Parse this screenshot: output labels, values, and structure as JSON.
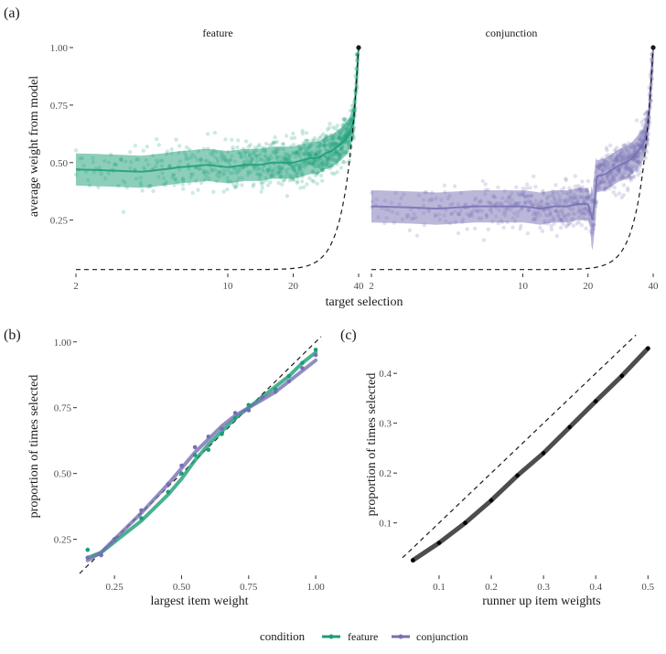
{
  "panel_labels": {
    "a": "(a)",
    "b": "(b)",
    "c": "(c)"
  },
  "colors": {
    "feature": "#1b9e77",
    "conjunction": "#7570b3",
    "line_c": "#4d4d4d",
    "ink": "#1a1a1a"
  },
  "legend": {
    "title": "condition",
    "items": [
      "feature",
      "conjunction"
    ]
  },
  "chart_data": [
    {
      "id": "a",
      "type": "scatter",
      "title": "",
      "facets": [
        "feature",
        "conjunction"
      ],
      "xlabel": "target selection",
      "ylabel": "average weight from model",
      "x_scale": "log",
      "xlim": [
        2,
        40
      ],
      "ylim": [
        0.03,
        1.0
      ],
      "xticks": [
        2,
        10,
        20,
        40
      ],
      "yticks": [
        "0.25",
        "0.50",
        "0.75",
        "1.00"
      ],
      "yticks_values": [
        0.25,
        0.5,
        0.75,
        1.0
      ],
      "reference": {
        "style": "dashed",
        "description": "curve from (2, 0.035) rising to (40, 1.00)"
      },
      "series": [
        {
          "name": "feature",
          "mean_x": [
            2,
            4,
            6,
            8,
            10,
            12,
            14,
            16,
            18,
            20,
            22,
            24,
            26,
            28,
            30,
            32,
            34,
            36,
            38,
            40
          ],
          "mean_y": [
            0.47,
            0.46,
            0.48,
            0.49,
            0.48,
            0.49,
            0.49,
            0.5,
            0.5,
            0.5,
            0.51,
            0.52,
            0.52,
            0.54,
            0.55,
            0.57,
            0.59,
            0.62,
            0.68,
            1.0
          ],
          "band_halfwidth": 0.07
        },
        {
          "name": "conjunction",
          "mean_x": [
            2,
            4,
            6,
            8,
            10,
            12,
            14,
            16,
            18,
            20,
            21,
            22,
            24,
            26,
            28,
            30,
            32,
            34,
            36,
            38,
            40
          ],
          "mean_y": [
            0.31,
            0.3,
            0.31,
            0.31,
            0.31,
            0.3,
            0.31,
            0.31,
            0.32,
            0.32,
            0.25,
            0.44,
            0.45,
            0.47,
            0.49,
            0.5,
            0.52,
            0.55,
            0.58,
            0.66,
            1.0
          ],
          "band_halfwidth": 0.07
        }
      ]
    },
    {
      "id": "b",
      "type": "line",
      "title": "",
      "xlabel": "largest item weight",
      "ylabel": "proportion of times selected",
      "xlim": [
        0.12,
        1.02
      ],
      "ylim": [
        0.12,
        1.02
      ],
      "xticks": [
        "0.25",
        "0.50",
        "0.75",
        "1.00"
      ],
      "xticks_values": [
        0.25,
        0.5,
        0.75,
        1.0
      ],
      "yticks": [
        "0.25",
        "0.50",
        "0.75",
        "1.00"
      ],
      "yticks_values": [
        0.25,
        0.5,
        0.75,
        1.0
      ],
      "reference": "y = x (dashed)",
      "x": [
        0.15,
        0.2,
        0.25,
        0.35,
        0.45,
        0.5,
        0.55,
        0.6,
        0.65,
        0.7,
        0.75,
        0.8,
        0.85,
        0.9,
        0.95,
        1.0
      ],
      "series": [
        {
          "name": "feature",
          "values": [
            0.21,
            0.19,
            0.25,
            0.33,
            0.43,
            0.5,
            0.57,
            0.59,
            0.65,
            0.71,
            0.76,
            0.79,
            0.82,
            0.87,
            0.92,
            0.97
          ]
        },
        {
          "name": "conjunction",
          "values": [
            0.18,
            0.19,
            0.25,
            0.36,
            0.46,
            0.53,
            0.6,
            0.64,
            0.67,
            0.73,
            0.74,
            0.79,
            0.81,
            0.85,
            0.9,
            0.95
          ]
        }
      ],
      "smooth": [
        {
          "name": "feature",
          "values": [
            0.18,
            0.2,
            0.24,
            0.32,
            0.42,
            0.48,
            0.55,
            0.61,
            0.66,
            0.71,
            0.75,
            0.79,
            0.83,
            0.87,
            0.92,
            0.96
          ]
        },
        {
          "name": "conjunction",
          "values": [
            0.17,
            0.2,
            0.25,
            0.35,
            0.46,
            0.52,
            0.58,
            0.63,
            0.68,
            0.72,
            0.75,
            0.78,
            0.81,
            0.85,
            0.89,
            0.93
          ]
        }
      ]
    },
    {
      "id": "c",
      "type": "line",
      "title": "",
      "xlabel": "runner up item weights",
      "ylabel": "proportion of times selected",
      "xlim": [
        0.03,
        0.51
      ],
      "ylim": [
        0.015,
        0.47
      ],
      "xticks": [
        "0.1",
        "0.2",
        "0.3",
        "0.4",
        "0.5"
      ],
      "xticks_values": [
        0.1,
        0.2,
        0.3,
        0.4,
        0.5
      ],
      "yticks": [
        "0.1",
        "0.2",
        "0.3",
        "0.4"
      ],
      "yticks_values": [
        0.1,
        0.2,
        0.3,
        0.4
      ],
      "reference": "y = x (dashed)",
      "x": [
        0.05,
        0.1,
        0.15,
        0.2,
        0.25,
        0.3,
        0.35,
        0.4,
        0.45,
        0.5
      ],
      "values": [
        0.025,
        0.06,
        0.1,
        0.145,
        0.195,
        0.24,
        0.292,
        0.344,
        0.395,
        0.45
      ]
    }
  ]
}
